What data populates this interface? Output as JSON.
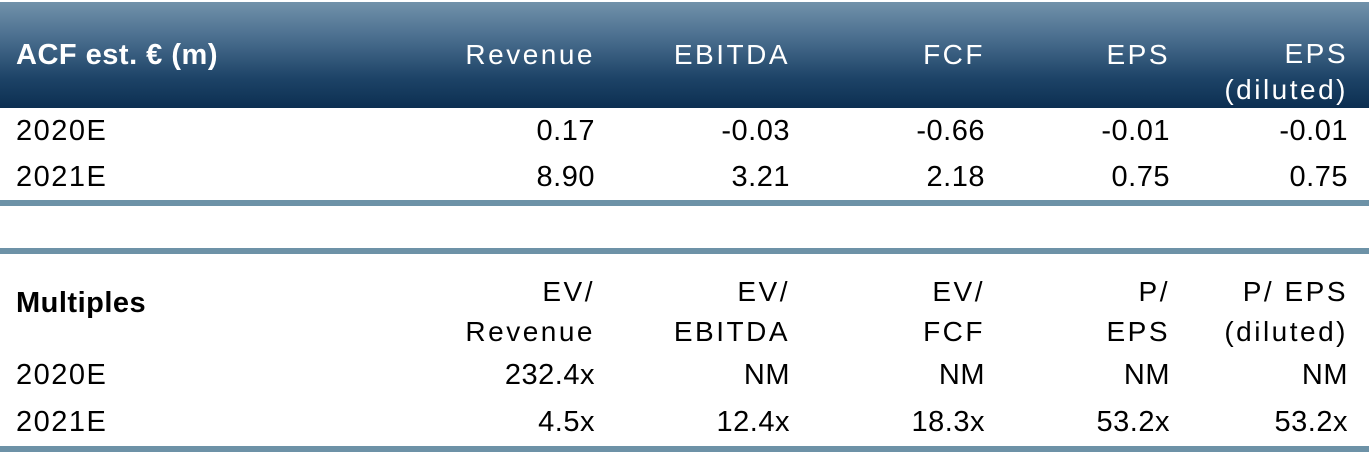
{
  "colors": {
    "header_gradient_top": "#7192AA",
    "header_gradient_bottom": "#0C2F51",
    "divider_line": "#6D92A7",
    "header_text": "#FFFFFF",
    "body_text": "#000000",
    "background": "#FFFFFF"
  },
  "table1": {
    "corner_label": "ACF est. € (m)",
    "headers_line1": [
      "Revenue",
      "EBITDA",
      "FCF",
      "EPS",
      "EPS"
    ],
    "headers_line2": [
      "",
      "",
      "",
      "",
      "(diluted)"
    ],
    "rows": [
      {
        "label": "2020E",
        "cells": [
          "0.17",
          "-0.03",
          "-0.66",
          "-0.01",
          "-0.01"
        ]
      },
      {
        "label": "2021E",
        "cells": [
          "8.90",
          "3.21",
          "2.18",
          "0.75",
          "0.75"
        ]
      }
    ]
  },
  "table2": {
    "corner_label": "Multiples",
    "headers_line1": [
      "EV/",
      "EV/",
      "EV/",
      "P/",
      "P/ EPS"
    ],
    "headers_line2": [
      "Revenue",
      "EBITDA",
      "FCF",
      "EPS",
      "(diluted)"
    ],
    "rows": [
      {
        "label": "2020E",
        "cells": [
          "232.4x",
          "NM",
          "NM",
          "NM",
          "NM"
        ]
      },
      {
        "label": "2021E",
        "cells": [
          "4.5x",
          "12.4x",
          "18.3x",
          "53.2x",
          "53.2x"
        ]
      }
    ]
  },
  "chart_data": [
    {
      "type": "table",
      "title": "ACF est. € (m)",
      "columns": [
        "Revenue",
        "EBITDA",
        "FCF",
        "EPS",
        "EPS (diluted)"
      ],
      "row_labels": [
        "2020E",
        "2021E"
      ],
      "values": [
        [
          0.17,
          -0.03,
          -0.66,
          -0.01,
          -0.01
        ],
        [
          8.9,
          3.21,
          2.18,
          0.75,
          0.75
        ]
      ]
    },
    {
      "type": "table",
      "title": "Multiples",
      "columns": [
        "EV/ Revenue",
        "EV/ EBITDA",
        "EV/ FCF",
        "P/ EPS",
        "P/ EPS (diluted)"
      ],
      "row_labels": [
        "2020E",
        "2021E"
      ],
      "values": [
        [
          "232.4x",
          "NM",
          "NM",
          "NM",
          "NM"
        ],
        [
          "4.5x",
          "12.4x",
          "18.3x",
          "53.2x",
          "53.2x"
        ]
      ]
    }
  ]
}
